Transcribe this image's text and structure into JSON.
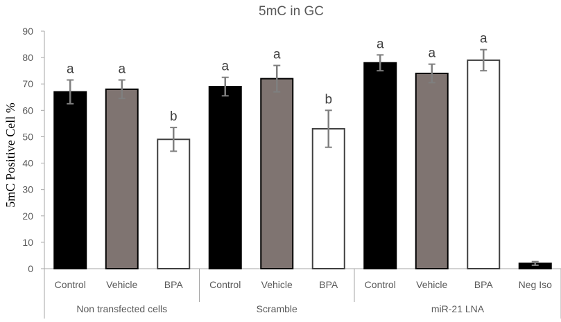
{
  "chart_data": {
    "type": "bar",
    "title": "5mC in GC",
    "ylabel": "5mC Positive Cell %",
    "xlabel": "",
    "ylim": [
      0,
      90
    ],
    "yticks": [
      0,
      10,
      20,
      30,
      40,
      50,
      60,
      70,
      80,
      90
    ],
    "grid": false,
    "legend": "none",
    "groups": [
      {
        "name": "Non transfected cells",
        "categories": [
          "Control",
          "Vehicle",
          "BPA"
        ]
      },
      {
        "name": "Scramble",
        "categories": [
          "Control",
          "Vehicle",
          "BPA"
        ]
      },
      {
        "name": "miR-21 LNA",
        "categories": [
          "Control",
          "Vehicle",
          "BPA",
          "Neg Iso"
        ]
      }
    ],
    "bars": [
      {
        "group": "Non transfected cells",
        "category": "Control",
        "value": 67,
        "error": 4.5,
        "label": "a",
        "color": "#000000"
      },
      {
        "group": "Non transfected cells",
        "category": "Vehicle",
        "value": 68,
        "error": 3.5,
        "label": "a",
        "color": "#7f7471"
      },
      {
        "group": "Non transfected cells",
        "category": "BPA",
        "value": 49,
        "error": 4.5,
        "label": "b",
        "color": "#ffffff"
      },
      {
        "group": "Scramble",
        "category": "Control",
        "value": 69,
        "error": 3.5,
        "label": "a",
        "color": "#000000"
      },
      {
        "group": "Scramble",
        "category": "Vehicle",
        "value": 72,
        "error": 5,
        "label": "a",
        "color": "#7f7471"
      },
      {
        "group": "Scramble",
        "category": "BPA",
        "value": 53,
        "error": 7,
        "label": "b",
        "color": "#ffffff"
      },
      {
        "group": "miR-21 LNA",
        "category": "Control",
        "value": 78,
        "error": 3,
        "label": "a",
        "color": "#000000"
      },
      {
        "group": "miR-21 LNA",
        "category": "Vehicle",
        "value": 74,
        "error": 3.5,
        "label": "a",
        "color": "#7f7471"
      },
      {
        "group": "miR-21 LNA",
        "category": "BPA",
        "value": 79,
        "error": 4,
        "label": "a",
        "color": "#ffffff"
      },
      {
        "group": "miR-21 LNA",
        "category": "Neg Iso",
        "value": 2,
        "error": 0.7,
        "label": "",
        "color": "#000000"
      }
    ]
  }
}
